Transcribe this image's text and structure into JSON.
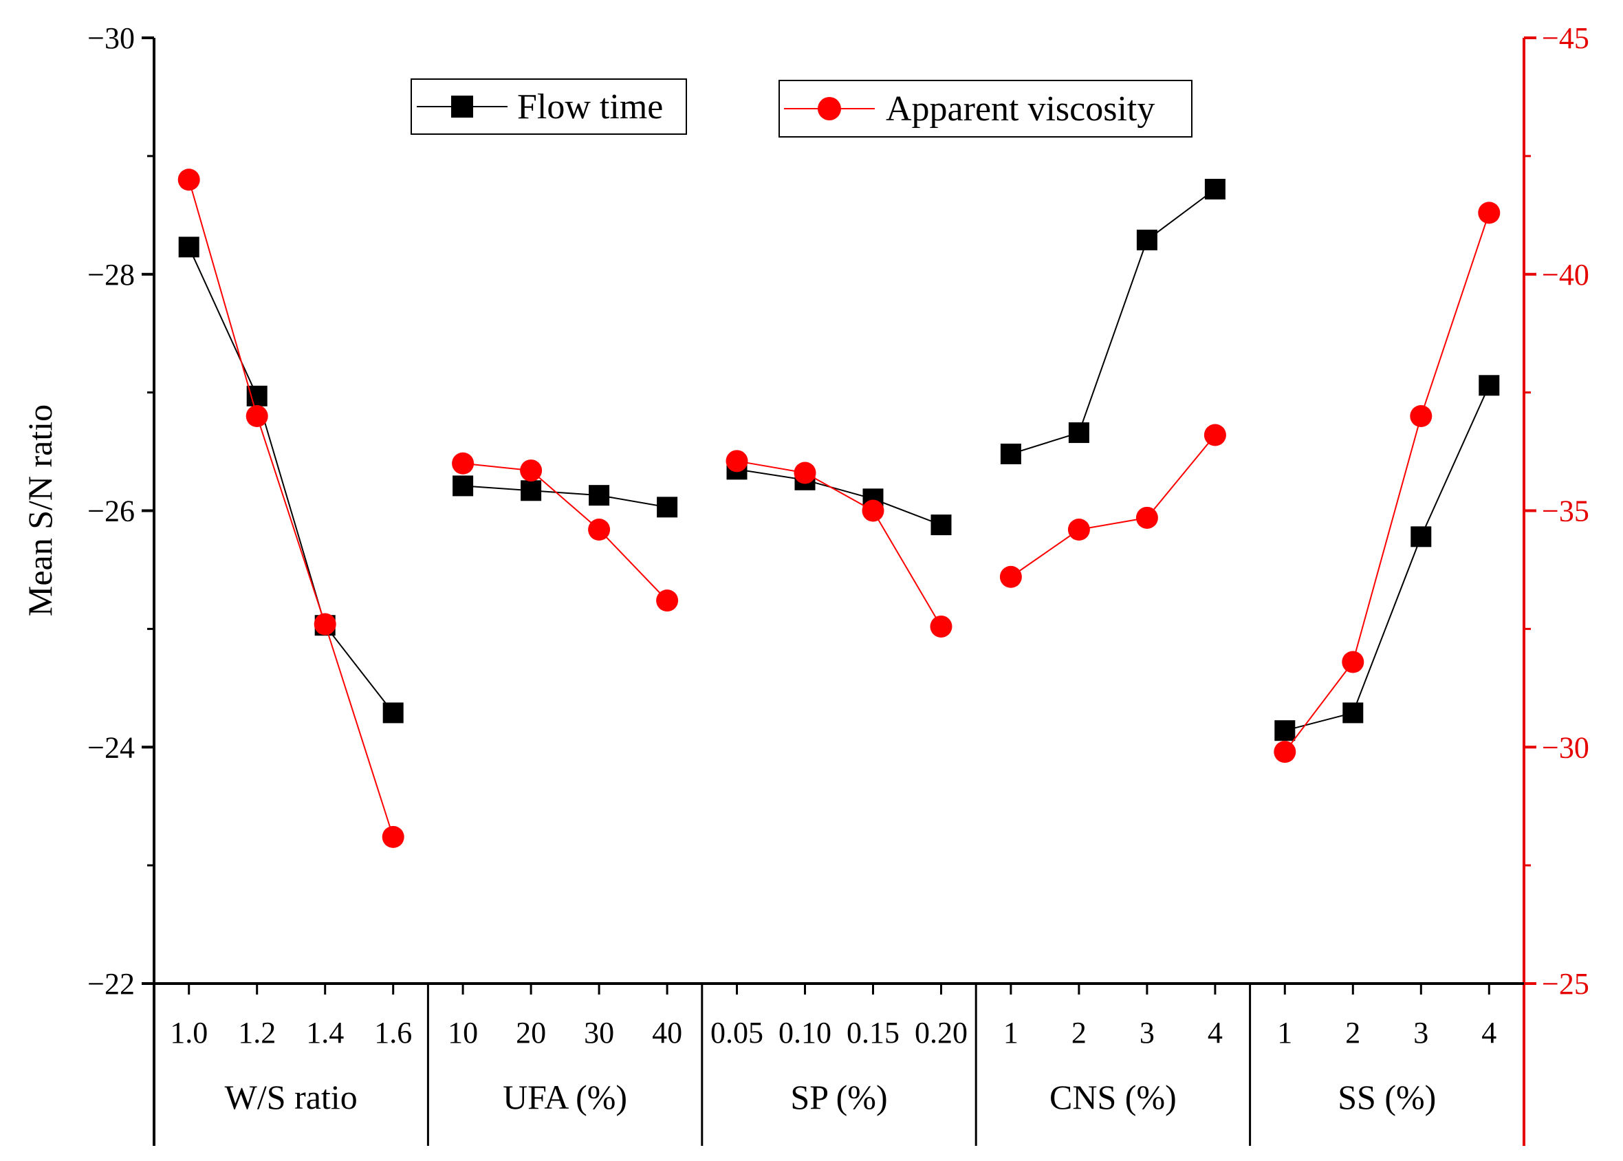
{
  "chart_data": {
    "type": "line",
    "ylabel": "Mean S/N ratio",
    "ylim_left": [
      -30,
      -22
    ],
    "ylim_right": [
      -45,
      -25
    ],
    "left_ticks": [
      -30,
      -28,
      -26,
      -24,
      -22
    ],
    "left_tick_labels": [
      "−30",
      "−28",
      "−26",
      "−24",
      "−22"
    ],
    "right_ticks": [
      -45,
      -40,
      -35,
      -30,
      -25
    ],
    "right_tick_labels": [
      "−45",
      "−40",
      "−35",
      "−30",
      "−25"
    ],
    "grid": false,
    "legend_placement": "top",
    "groups": [
      {
        "name": "W/S ratio",
        "levels": [
          "1.0",
          "1.2",
          "1.4",
          "1.6"
        ]
      },
      {
        "name": "UFA (%)",
        "levels": [
          "10",
          "20",
          "30",
          "40"
        ]
      },
      {
        "name": "SP (%)",
        "levels": [
          "0.05",
          "0.10",
          "0.15",
          "0.20"
        ]
      },
      {
        "name": "CNS (%)",
        "levels": [
          "1",
          "2",
          "3",
          "4"
        ]
      },
      {
        "name": "SS (%)",
        "levels": [
          "1",
          "2",
          "3",
          "4"
        ]
      }
    ],
    "series": [
      {
        "name": "Flow time",
        "axis": "left",
        "color": "#000000",
        "marker": "square",
        "values": [
          [
            -28.23,
            -26.97,
            -25.03,
            -24.29
          ],
          [
            -26.21,
            -26.17,
            -26.13,
            -26.03
          ],
          [
            -26.35,
            -26.26,
            -26.1,
            -25.88
          ],
          [
            -26.48,
            -26.66,
            -28.29,
            -28.72
          ],
          [
            -24.14,
            -24.29,
            -25.78,
            -27.06
          ]
        ]
      },
      {
        "name": "Apparent viscosity",
        "axis": "right",
        "color": "#ff0000",
        "marker": "circle",
        "values": [
          [
            -42.0,
            -37.0,
            -32.6,
            -28.1
          ],
          [
            -36.0,
            -35.85,
            -34.6,
            -33.1
          ],
          [
            -36.05,
            -35.8,
            -35.0,
            -32.55
          ],
          [
            -33.6,
            -34.6,
            -34.85,
            -36.6
          ],
          [
            -29.9,
            -31.8,
            -37.0,
            -41.3
          ]
        ]
      }
    ]
  }
}
